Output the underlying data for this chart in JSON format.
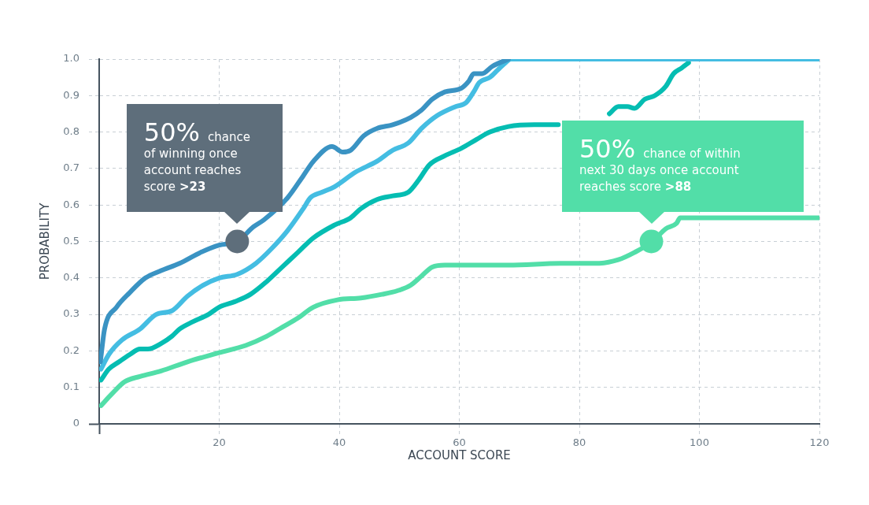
{
  "chart_data": {
    "type": "line",
    "xlabel": "ACCOUNT SCORE",
    "ylabel": "PROBABILITY",
    "xlim": [
      0,
      120
    ],
    "xticks": [
      {
        "value": 0,
        "label": null
      },
      20,
      40,
      60,
      80,
      100,
      120
    ],
    "ylim": [
      0,
      1
    ],
    "yticks": [
      0,
      0.1,
      0.2,
      0.3,
      0.4,
      0.5,
      0.6,
      0.7,
      0.8,
      0.9,
      {
        "value": 1,
        "label": "1.0"
      }
    ],
    "grid": true,
    "legend": false,
    "marker": "none",
    "line_style": "solid",
    "series": [
      {
        "color": "#3a93c3",
        "x": [
          0.2,
          0.9,
          2.9,
          5.1,
          7.7,
          10.3,
          13.4,
          16.9,
          20,
          23,
          25.7,
          27.5,
          31.4,
          34,
          35.7,
          38.8,
          40.6,
          41.9,
          44.1,
          46.3,
          48.9,
          51.9,
          53.7,
          55.5,
          57.6,
          60.3,
          61.6,
          62.4,
          63.8,
          65.5,
          68.2
        ],
        "values": [
          0.17,
          0.26,
          0.32,
          0.36,
          0.4,
          0.42,
          0.44,
          0.47,
          0.49,
          0.5,
          0.54,
          0.56,
          0.62,
          0.68,
          0.72,
          0.76,
          0.745,
          0.75,
          0.79,
          0.81,
          0.82,
          0.84,
          0.86,
          0.89,
          0.91,
          0.92,
          0.94,
          0.96,
          0.96,
          0.98,
          1
        ]
      },
      {
        "color": "#44bde2",
        "x": [
          0.3,
          1.6,
          3.8,
          6.8,
          9.5,
          12.1,
          14.7,
          17.3,
          20,
          23,
          26.1,
          28.7,
          31.4,
          34,
          35.2,
          37.1,
          39.2,
          42.7,
          46.3,
          48.9,
          51.5,
          53.7,
          56.3,
          59.4,
          61.1,
          62.4,
          63.3,
          65.1,
          66.4,
          67.7,
          68.6,
          120
        ],
        "values": [
          0.15,
          0.19,
          0.23,
          0.26,
          0.3,
          0.31,
          0.35,
          0.38,
          0.4,
          0.41,
          0.44,
          0.48,
          0.53,
          0.59,
          0.62,
          0.635,
          0.65,
          0.69,
          0.72,
          0.75,
          0.77,
          0.81,
          0.845,
          0.87,
          0.88,
          0.91,
          0.935,
          0.95,
          0.97,
          0.99,
          1,
          1
        ]
      },
      {
        "color": "#05bdb2",
        "x": [
          0.3,
          1.6,
          3.3,
          5.1,
          6.8,
          8.1,
          10.3,
          12.1,
          13.4,
          15.6,
          18.2,
          20,
          22.6,
          25.2,
          27.9,
          30.5,
          33.1,
          35.7,
          39.2,
          41.9,
          43.6,
          46.3,
          48.9,
          51.5,
          53.3,
          55,
          57.6,
          60.3,
          62.9,
          65.1,
          68.2,
          72.5,
          76.5,
          80,
          85,
          86.5,
          88,
          89.2,
          90.9,
          92.6,
          94.4,
          95.7,
          97,
          98.2
        ],
        "values": [
          0.12,
          0.15,
          0.17,
          0.19,
          0.205,
          0.205,
          0.22,
          0.24,
          0.26,
          0.28,
          0.3,
          0.32,
          0.335,
          0.355,
          0.39,
          0.43,
          0.47,
          0.51,
          0.545,
          0.565,
          0.59,
          0.615,
          0.625,
          0.635,
          0.67,
          0.71,
          0.735,
          0.755,
          0.78,
          0.8,
          0.815,
          0.82,
          0.82,
          null,
          0.85,
          0.87,
          0.87,
          0.865,
          0.89,
          0.9,
          0.925,
          0.96,
          0.975,
          0.99
        ]
      },
      {
        "color": "#52dea8",
        "x": [
          0.3,
          2,
          4.2,
          6.8,
          10.3,
          14.7,
          20,
          24.4,
          27.9,
          30.5,
          33.1,
          35.7,
          39.7,
          43.6,
          47.1,
          49.7,
          51.9,
          53.7,
          55.5,
          57.6,
          60.3,
          68.2,
          76.9,
          83,
          86.5,
          89.2,
          92.2,
          94.4,
          96.2,
          96.8,
          99.7,
          120
        ],
        "values": [
          0.05,
          0.08,
          0.115,
          0.13,
          0.145,
          0.17,
          0.195,
          0.215,
          0.24,
          0.265,
          0.29,
          0.32,
          0.34,
          0.345,
          0.355,
          0.365,
          0.38,
          0.405,
          0.43,
          0.435,
          0.435,
          0.435,
          0.44,
          0.44,
          0.45,
          0.47,
          0.5,
          0.535,
          0.55,
          0.565,
          0.565,
          0.565
        ]
      },
      {
        "type": "scatter",
        "marker": "circle",
        "x": [
          23,
          92
        ],
        "values": [
          0.5,
          0.5
        ],
        "colors": [
          "#5e6e7b",
          "#52dea8"
        ]
      }
    ],
    "annotations": [
      "50% chance of winning once account reaches score >23",
      "50% chance of within next 30 days once account reaches score >88"
    ]
  }
}
